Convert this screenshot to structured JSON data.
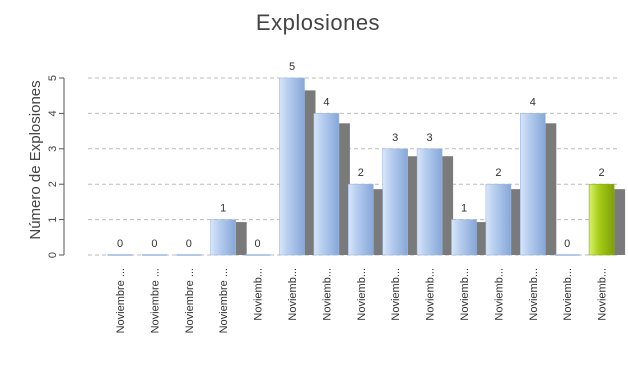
{
  "chart_data": {
    "type": "bar",
    "title": "Explosiones",
    "xlabel": "",
    "ylabel": "Número de Explosiones",
    "ylim": [
      0,
      5.5
    ],
    "yticks": [
      0,
      1,
      2,
      3,
      4,
      5
    ],
    "grid": "horizontal dashed",
    "categories": [
      "Noviembre ...",
      "Noviembre ...",
      "Noviembre ...",
      "Noviembre ...",
      "Noviemb...",
      "Noviemb...",
      "Noviemb...",
      "Noviemb...",
      "Noviemb...",
      "Noviemb...",
      "Noviemb...",
      "Noviemb...",
      "Noviemb...",
      "Noviemb...",
      "Noviemb..."
    ],
    "values": [
      0,
      0,
      0,
      1,
      0,
      5,
      4,
      2,
      3,
      3,
      1,
      2,
      4,
      0,
      2
    ],
    "highlight_index": 14,
    "colors": {
      "bar": "#a9c4ea",
      "bar_light": "#dbe7f8",
      "bar_dark": "#86a7d8",
      "highlight": "#a6cc16",
      "highlight_light": "#d6ef6a",
      "shadow": "#7a7a7a",
      "grid": "#bbbbbb"
    }
  }
}
